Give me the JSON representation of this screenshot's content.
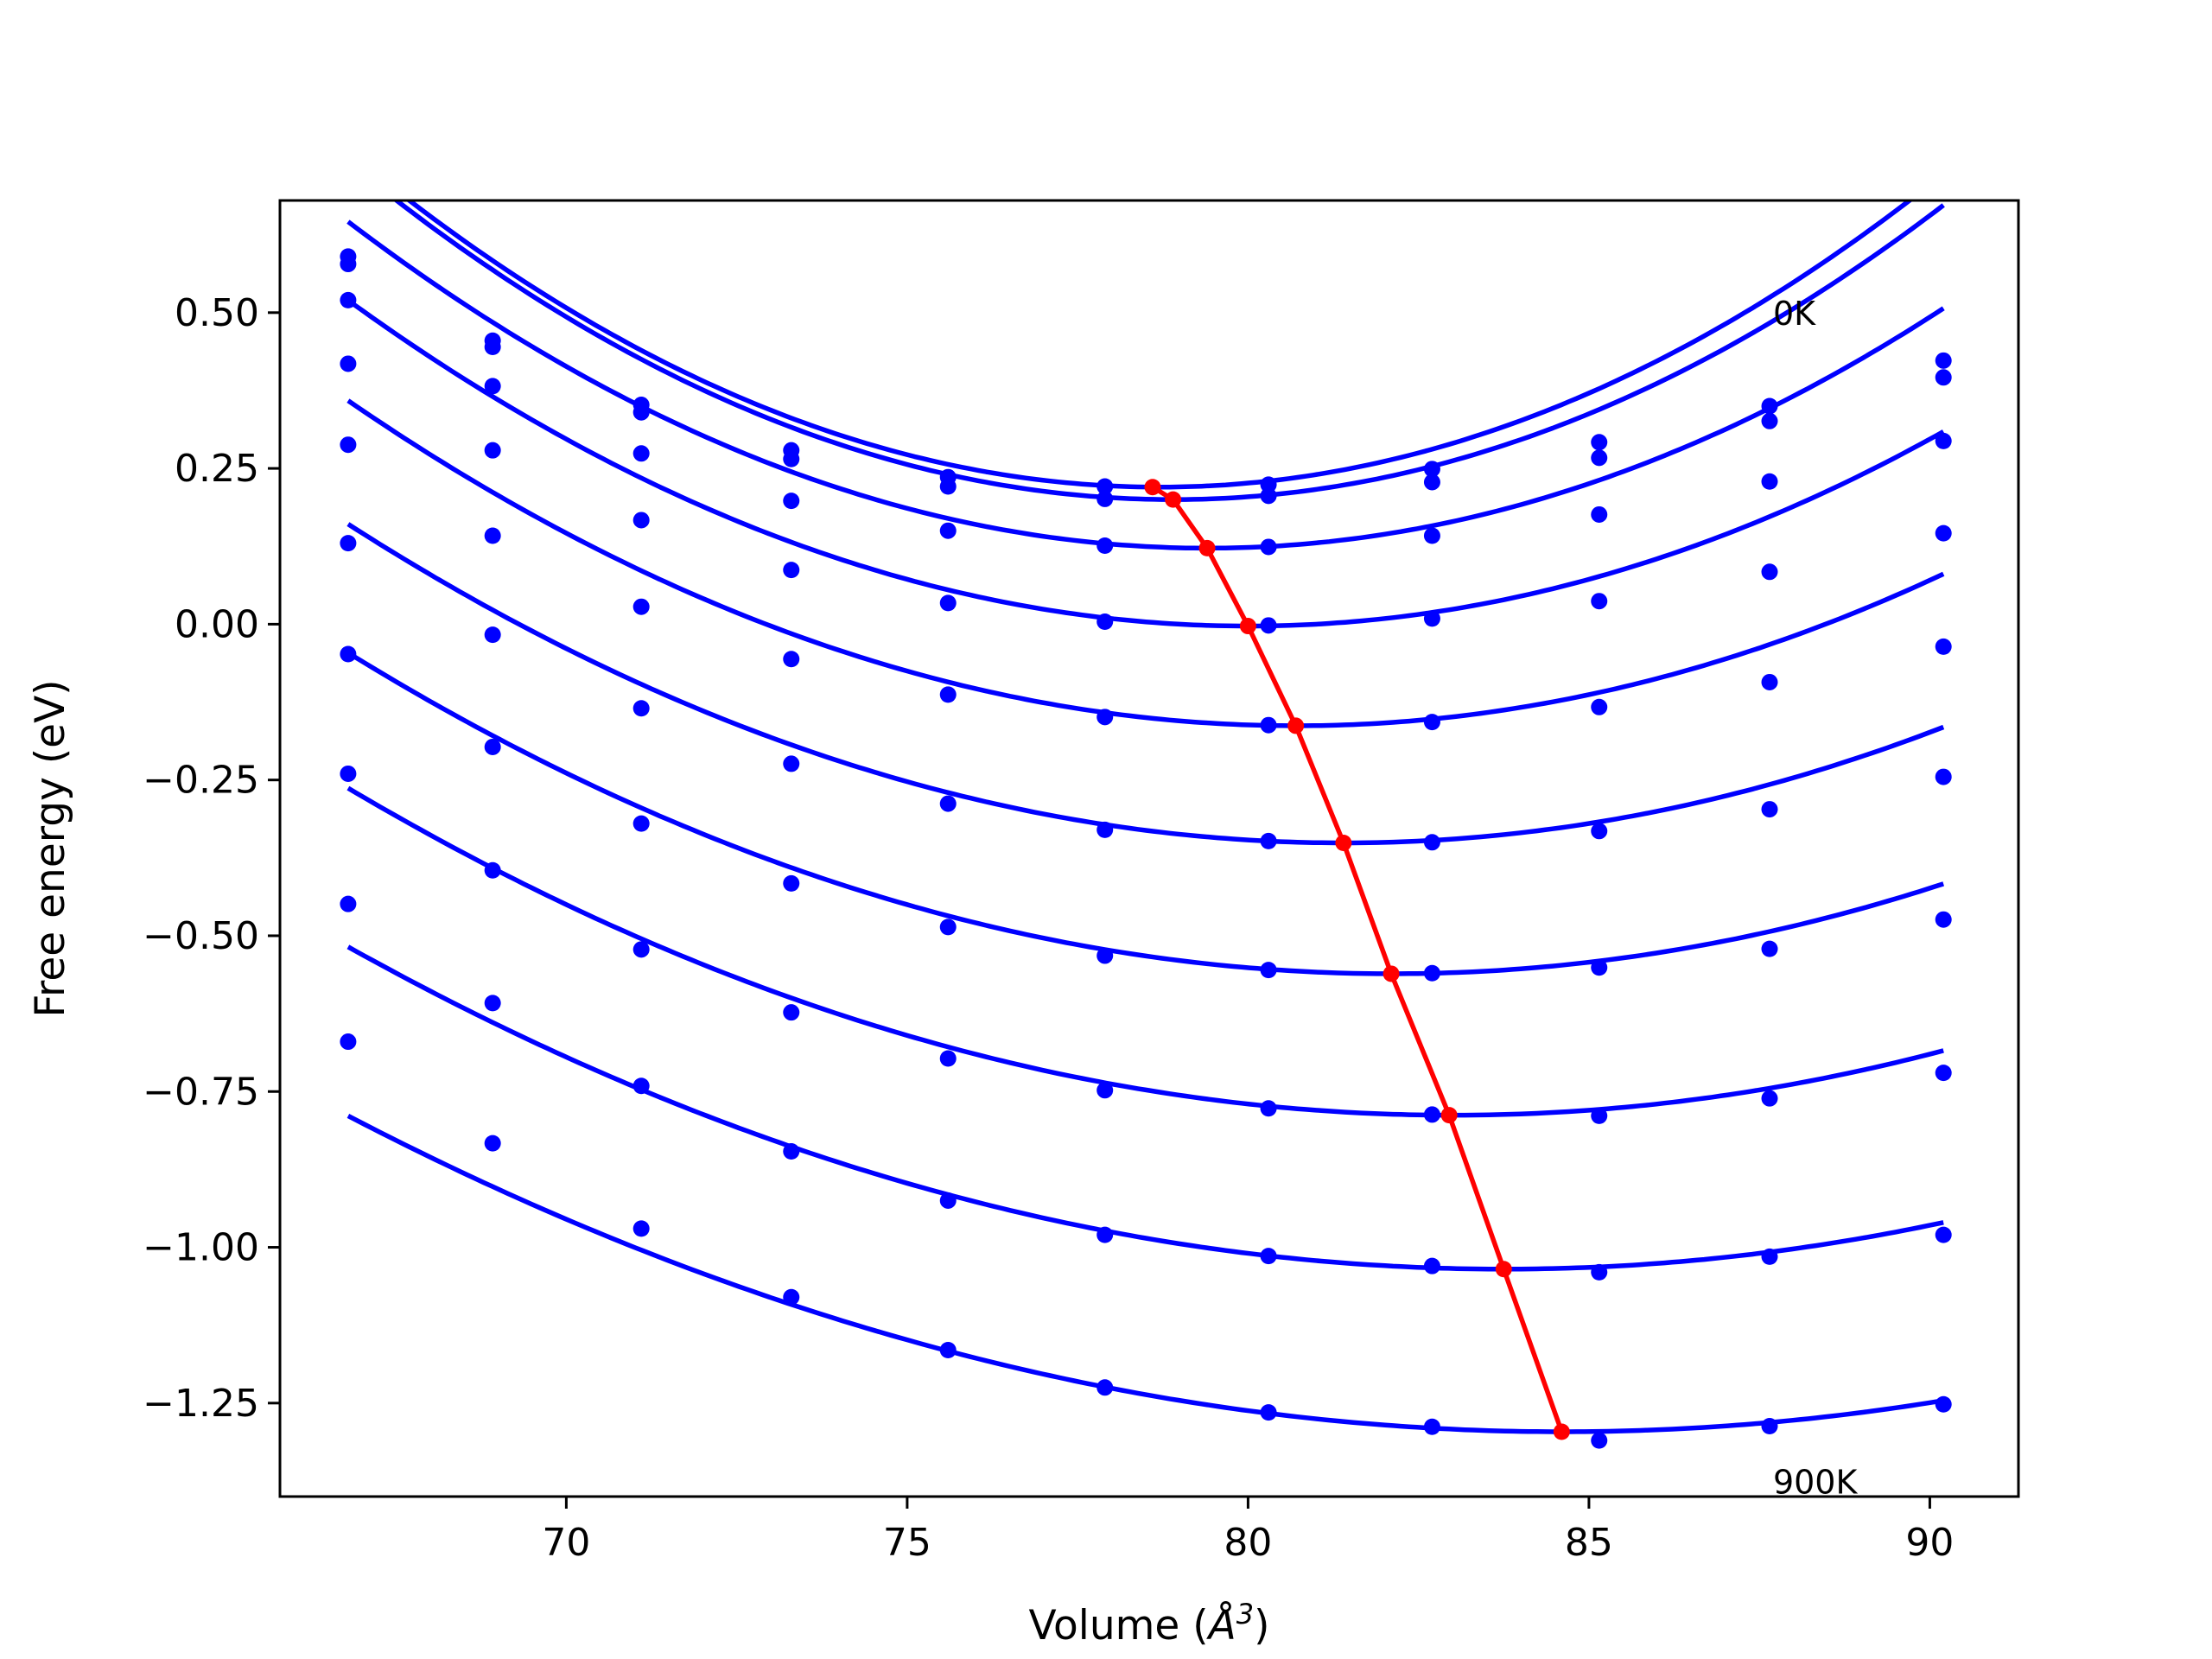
{
  "chart_data": {
    "type": "line",
    "xlabel_main": "Volume (",
    "xlabel_unit": "Å",
    "xlabel_exp": "3",
    "xlabel_close": ")",
    "ylabel": "Free energy (eV)",
    "xlim": [
      65.8,
      91.3
    ],
    "ylim": [
      -1.4,
      0.68
    ],
    "xticks": [
      70,
      75,
      80,
      85,
      90
    ],
    "xtick_labels": [
      "70",
      "75",
      "80",
      "85",
      "90"
    ],
    "yticks": [
      0.5,
      0.25,
      0.0,
      -0.25,
      -0.5,
      -0.75,
      -1.0,
      -1.25
    ],
    "ytick_labels": [
      "0.50",
      "0.25",
      "0.00",
      "−0.25",
      "−0.50",
      "−0.75",
      "−1.00",
      "−1.25"
    ],
    "annotations": [
      {
        "text": "0K",
        "x": 87.7,
        "y": 0.48
      },
      {
        "text": "900K",
        "x": 87.7,
        "y": -1.395
      }
    ],
    "x": [
      66.8,
      68.92,
      71.1,
      73.3,
      75.6,
      77.9,
      80.3,
      82.7,
      85.15,
      87.65,
      90.2
    ],
    "series": [
      {
        "color": "#0000ff",
        "values": [
          0.59,
          0.455,
          0.352,
          0.279,
          0.236,
          0.221,
          0.224,
          0.249,
          0.292,
          0.35,
          0.423
        ],
        "fit": {
          "a": 0.0038,
          "v0": 78.7,
          "e0": 0.22
        }
      },
      {
        "color": "#0000ff",
        "values": [
          0.578,
          0.445,
          0.34,
          0.265,
          0.221,
          0.201,
          0.206,
          0.228,
          0.267,
          0.326,
          0.396
        ],
        "fit": {
          "a": 0.0037,
          "v0": 78.9,
          "e0": 0.2
        }
      },
      {
        "color": "#0000ff",
        "values": [
          0.52,
          0.382,
          0.274,
          0.198,
          0.15,
          0.126,
          0.124,
          0.142,
          0.176,
          0.229,
          0.294
        ],
        "fit": {
          "a": 0.0033,
          "v0": 79.4,
          "e0": 0.122
        }
      },
      {
        "color": "#0000ff",
        "values": [
          0.418,
          0.279,
          0.167,
          0.087,
          0.034,
          0.004,
          -0.002,
          0.009,
          0.037,
          0.084,
          0.146
        ],
        "fit": {
          "a": 0.003,
          "v0": 80.0,
          "e0": -0.003
        }
      },
      {
        "color": "#0000ff",
        "values": [
          0.288,
          0.142,
          0.028,
          -0.056,
          -0.113,
          -0.149,
          -0.162,
          -0.157,
          -0.133,
          -0.093,
          -0.036
        ],
        "fit": {
          "a": 0.0027,
          "v0": 80.7,
          "e0": -0.163
        }
      },
      {
        "color": "#0000ff",
        "values": [
          0.13,
          -0.017,
          -0.135,
          -0.224,
          -0.288,
          -0.33,
          -0.348,
          -0.35,
          -0.332,
          -0.297,
          -0.245
        ],
        "fit": {
          "a": 0.0024,
          "v0": 81.4,
          "e0": -0.351
        }
      },
      {
        "color": "#0000ff",
        "values": [
          -0.048,
          -0.197,
          -0.32,
          -0.416,
          -0.486,
          -0.532,
          -0.555,
          -0.56,
          -0.551,
          -0.521,
          -0.474
        ],
        "fit": {
          "a": 0.0022,
          "v0": 82.1,
          "e0": -0.561
        }
      },
      {
        "color": "#0000ff",
        "values": [
          -0.24,
          -0.395,
          -0.522,
          -0.623,
          -0.697,
          -0.748,
          -0.777,
          -0.787,
          -0.789,
          -0.761,
          -0.72
        ],
        "fit": {
          "a": 0.002,
          "v0": 83.0,
          "e0": -0.788
        }
      },
      {
        "color": "#0000ff",
        "values": [
          -0.449,
          -0.608,
          -0.741,
          -0.846,
          -0.925,
          -0.98,
          -1.014,
          -1.03,
          -1.04,
          -1.015,
          -0.98
        ],
        "fit": {
          "a": 0.0018,
          "v0": 83.75,
          "e0": -1.035
        }
      },
      {
        "color": "#0000ff",
        "values": [
          -0.67,
          -0.833,
          -0.97,
          -1.08,
          -1.165,
          -1.225,
          -1.265,
          -1.288,
          -1.31,
          -1.287,
          -1.252
        ],
        "fit": {
          "a": 0.0016,
          "v0": 84.6,
          "e0": -1.296
        }
      }
    ],
    "minima_path": {
      "color": "#ff0000",
      "x": [
        78.6,
        78.9,
        79.4,
        80.0,
        80.7,
        81.4,
        82.1,
        82.95,
        83.75,
        84.6
      ],
      "values": [
        0.22,
        0.2,
        0.122,
        -0.003,
        -0.163,
        -0.351,
        -0.561,
        -0.788,
        -1.035,
        -1.296
      ]
    }
  }
}
